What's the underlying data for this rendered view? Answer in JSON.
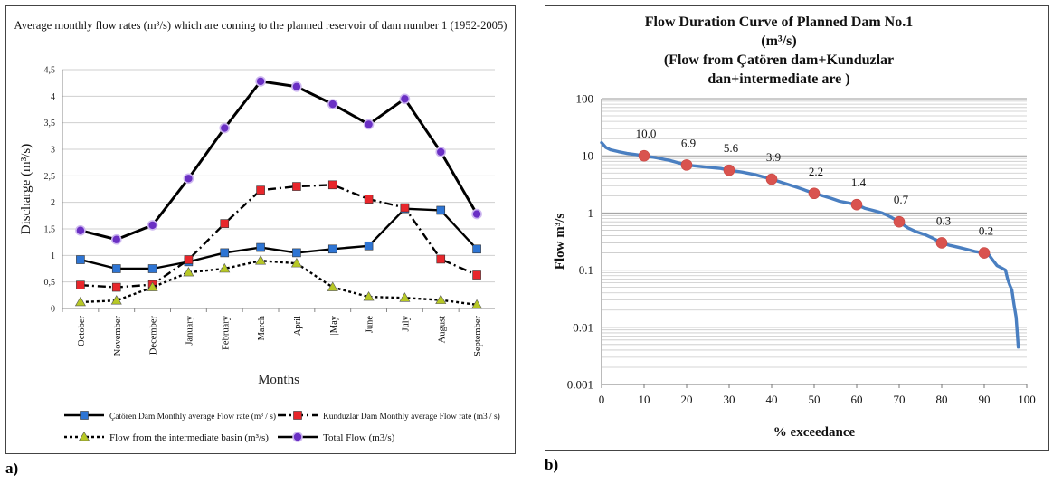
{
  "panel_labels": {
    "a": "a)",
    "b": "b)"
  },
  "chart_data": [
    {
      "type": "line",
      "title": "Average monthly flow rates (m³/s) which are coming to the planned reservoir of dam number 1 (1952-2005)",
      "xlabel": "Months",
      "ylabel": "Discharge (m³/s)",
      "ylim": [
        0,
        4.5
      ],
      "yticks": [
        "0",
        "0,5",
        "1",
        "1,5",
        "2",
        "2,5",
        "3",
        "3,5",
        "4",
        "4,5"
      ],
      "categories": [
        "October",
        "November",
        "December",
        "January",
        "February",
        "March",
        "April",
        "|May",
        "June",
        "July",
        "August",
        "September"
      ],
      "grid": true,
      "legend_position": "bottom",
      "series": [
        {
          "name": "Çatören Dam Monthly average Flow rate (m³ / s)",
          "color": "#000000",
          "marker_color": "#2e75d4",
          "marker": "square",
          "dash": "solid",
          "values": [
            0.92,
            0.75,
            0.75,
            0.88,
            1.05,
            1.15,
            1.05,
            1.12,
            1.18,
            1.88,
            1.85,
            1.12
          ]
        },
        {
          "name": "Kunduzlar Dam Monthly average Flow rate (m3 / s)",
          "color": "#000000",
          "marker_color": "#e8262b",
          "marker": "square",
          "dash": "dashdot",
          "values": [
            0.44,
            0.4,
            0.45,
            0.92,
            1.6,
            2.23,
            2.3,
            2.33,
            2.06,
            1.9,
            0.93,
            0.63
          ]
        },
        {
          "name": "Flow from the intermediate basin (m³/s)",
          "color": "#000000",
          "marker_color": "#b7c825",
          "marker": "triangle",
          "dash": "dotted",
          "values": [
            0.12,
            0.15,
            0.4,
            0.68,
            0.75,
            0.9,
            0.85,
            0.4,
            0.22,
            0.2,
            0.16,
            0.07
          ]
        },
        {
          "name": "Total Flow (m3/s)",
          "color": "#000000",
          "marker_color": "#6a2fc4",
          "marker": "circle",
          "dash": "solid",
          "values": [
            1.47,
            1.3,
            1.57,
            2.45,
            3.4,
            4.28,
            4.18,
            3.85,
            3.47,
            3.95,
            2.95,
            1.78
          ]
        }
      ]
    },
    {
      "type": "line",
      "title_lines": [
        "Flow Duration Curve of Planned Dam No.1",
        "(m³/s)",
        "(Flow from Çatören dam+Kunduzlar",
        "dan+intermediate are )"
      ],
      "xlabel": "% exceedance",
      "ylabel": "Flow m³/s",
      "xlim": [
        0,
        100
      ],
      "xticks": [
        "0",
        "10",
        "20",
        "30",
        "40",
        "50",
        "60",
        "70",
        "80",
        "90",
        "100"
      ],
      "yscale": "log",
      "ylim": [
        0.001,
        100
      ],
      "yticks": [
        "0.001",
        "0.01",
        "0.1",
        "1",
        "10",
        "100"
      ],
      "grid": true,
      "curve_color": "#4a7fc1",
      "marker_color": "#d9534f",
      "curve": {
        "x": [
          0,
          1,
          2,
          4,
          6,
          8,
          10,
          13,
          16,
          20,
          24,
          28,
          30,
          33,
          36,
          40,
          43,
          46,
          50,
          52,
          54,
          56,
          58,
          60,
          62,
          64,
          65,
          66,
          68,
          70,
          72,
          74,
          76,
          78,
          80,
          82,
          84,
          86,
          88,
          90,
          91,
          92,
          93,
          94,
          95,
          95.5,
          96,
          96.5,
          97,
          97.5,
          98
        ],
        "y": [
          17,
          14,
          12.8,
          11.8,
          11,
          10.5,
          10.0,
          9.2,
          8.3,
          6.9,
          6.4,
          6.0,
          5.6,
          5.2,
          4.7,
          3.9,
          3.3,
          2.8,
          2.2,
          2.0,
          1.8,
          1.6,
          1.5,
          1.4,
          1.2,
          1.1,
          1.05,
          1.0,
          0.85,
          0.7,
          0.55,
          0.47,
          0.42,
          0.36,
          0.3,
          0.27,
          0.25,
          0.23,
          0.21,
          0.2,
          0.19,
          0.15,
          0.12,
          0.11,
          0.1,
          0.07,
          0.055,
          0.045,
          0.025,
          0.015,
          0.0045
        ]
      },
      "points": [
        {
          "x": 10,
          "y": 10.0,
          "label": "10.0"
        },
        {
          "x": 20,
          "y": 6.9,
          "label": "6.9"
        },
        {
          "x": 30,
          "y": 5.6,
          "label": "5.6"
        },
        {
          "x": 40,
          "y": 3.9,
          "label": "3.9"
        },
        {
          "x": 50,
          "y": 2.2,
          "label": "2.2"
        },
        {
          "x": 60,
          "y": 1.4,
          "label": "1.4"
        },
        {
          "x": 70,
          "y": 0.7,
          "label": "0.7"
        },
        {
          "x": 80,
          "y": 0.3,
          "label": "0.3"
        },
        {
          "x": 90,
          "y": 0.2,
          "label": "0.2"
        }
      ]
    }
  ]
}
